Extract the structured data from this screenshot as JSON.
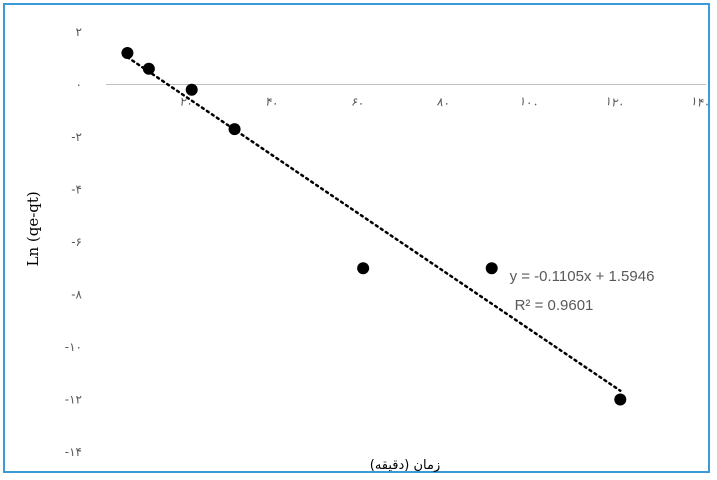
{
  "chart_data": {
    "type": "scatter",
    "xlabel": "زمان (دقیقه)",
    "ylabel": "Ln (qe-qt)",
    "xlim": [
      0,
      140
    ],
    "ylim": [
      -14,
      2
    ],
    "x_ticks": [
      20,
      40,
      60,
      80,
      100,
      120,
      140
    ],
    "x_tick_labels": [
      "۲۰",
      "۴۰",
      "۶۰",
      "۸۰",
      "۱۰۰",
      "۱۲۰",
      "۱۴۰"
    ],
    "y_ticks": [
      2,
      0,
      -2,
      -4,
      -6,
      -8,
      -10,
      -12,
      -14
    ],
    "y_tick_labels": [
      "۲",
      "۰",
      "-۲",
      "-۴",
      "-۶",
      "-۸",
      "-۱۰",
      "-۱۲",
      "-۱۴"
    ],
    "grid": false,
    "series": [
      {
        "points": [
          {
            "x": 5,
            "y": 1.2
          },
          {
            "x": 10,
            "y": 0.6
          },
          {
            "x": 20,
            "y": -0.2
          },
          {
            "x": 30,
            "y": -1.7
          },
          {
            "x": 60,
            "y": -7.0
          },
          {
            "x": 90,
            "y": -7.0
          },
          {
            "x": 120,
            "y": -12.0
          }
        ]
      }
    ],
    "trendline": {
      "type": "linear",
      "slope": -0.1105,
      "intercept": 1.5946,
      "x_range": [
        5,
        120
      ],
      "equation_label": "y = -0.1105x + 1.5946",
      "r2_label": "R² = 0.9601"
    }
  }
}
